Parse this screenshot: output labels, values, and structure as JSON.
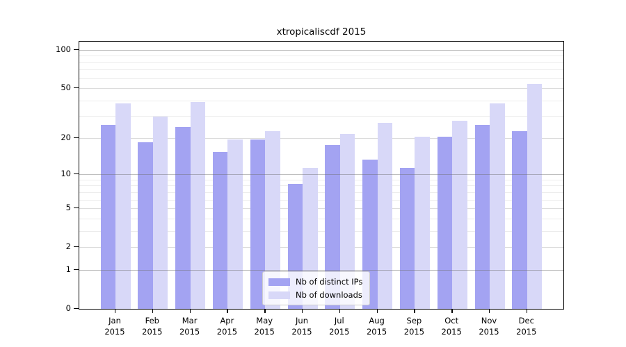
{
  "chart_data": {
    "type": "bar",
    "title": "xtropicaliscdf 2015",
    "categories": [
      "Jan",
      "Feb",
      "Mar",
      "Apr",
      "May",
      "Jun",
      "Jul",
      "Aug",
      "Sep",
      "Oct",
      "Nov",
      "Dec"
    ],
    "year": "2015",
    "series": [
      {
        "name": "Nb of distinct IPs",
        "color": "#a3a3f2",
        "values": [
          25,
          18,
          24,
          15,
          19,
          8,
          17,
          13,
          11,
          20,
          25,
          22
        ]
      },
      {
        "name": "Nb of downloads",
        "color": "#d8d8f8",
        "values": [
          37,
          29,
          38,
          19,
          22,
          11,
          21,
          26,
          20,
          27,
          37,
          53
        ]
      }
    ],
    "y_scale": "log10(1+v)",
    "y_ticks": [
      0,
      1,
      2,
      5,
      10,
      20,
      50,
      100
    ],
    "y_gridlines_decade": [
      1,
      10,
      100
    ],
    "y_gridlines_mid": [
      2,
      5,
      20,
      50
    ],
    "y_gridlines_minor": [
      3,
      4,
      6,
      7,
      8,
      9,
      30,
      40,
      60,
      70,
      80,
      90
    ],
    "ylim": [
      0,
      116
    ],
    "xlabel": "",
    "ylabel": "",
    "grid": true,
    "legend_position": "bottom-center"
  }
}
